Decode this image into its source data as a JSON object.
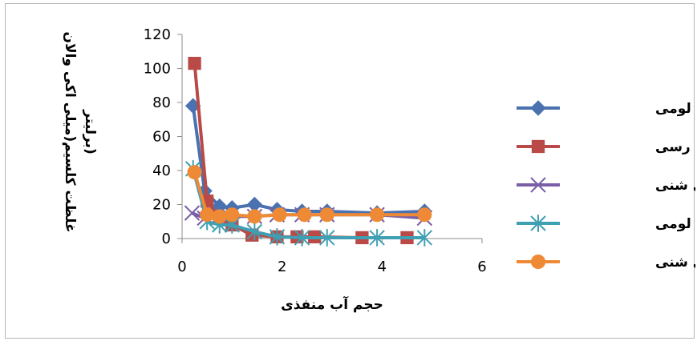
{
  "chart_data": {
    "type": "line",
    "title": "",
    "xlabel": "حجم آب منفذی",
    "ylabel_line1": "غلظت کلسیم(میلی اکی والان",
    "ylabel_line2": "برلیتر)",
    "xlim": [
      0,
      6
    ],
    "ylim": [
      0,
      120
    ],
    "xticks": [
      0,
      2,
      4,
      6
    ],
    "yticks": [
      0,
      20,
      40,
      60,
      80,
      100,
      120
    ],
    "grid": false,
    "legend_position": "right",
    "series": [
      {
        "name": "شنی لومی",
        "marker": "diamond",
        "color": "#4a72b0",
        "x": [
          0.22,
          0.45,
          0.75,
          1.0,
          1.45,
          1.9,
          2.4,
          2.9,
          3.9,
          4.85
        ],
        "y": [
          78,
          28,
          19,
          18,
          20,
          17,
          16,
          16,
          15,
          16
        ]
      },
      {
        "name": "لومی رسی",
        "marker": "square",
        "color": "#b94a48",
        "x": [
          0.25,
          0.5,
          0.75,
          1.0,
          1.4,
          1.9,
          2.3,
          2.65,
          3.6,
          4.5
        ],
        "y": [
          103,
          22,
          12,
          8,
          2,
          1,
          1,
          1,
          0.5,
          0.5
        ]
      },
      {
        "name": "لومی رسی شنی",
        "marker": "x",
        "color": "#7a5ea8",
        "x": [
          0.2,
          0.45,
          0.7,
          0.95,
          1.45,
          1.9,
          2.4,
          2.9,
          3.9,
          4.85
        ],
        "y": [
          15,
          12,
          12,
          13,
          13,
          14,
          14,
          14,
          14,
          12
        ]
      },
      {
        "name": "لومی",
        "marker": "asterisk",
        "color": "#3f9fb3",
        "x": [
          0.22,
          0.5,
          0.75,
          1.0,
          1.45,
          1.9,
          2.4,
          2.9,
          3.9,
          4.85
        ],
        "y": [
          41,
          10,
          8,
          8,
          4,
          1,
          0.5,
          0.5,
          0.5,
          0.5
        ]
      },
      {
        "name": "لومی شنی",
        "marker": "circle",
        "color": "#ee8a35",
        "x": [
          0.25,
          0.5,
          0.75,
          1.0,
          1.45,
          1.95,
          2.45,
          2.9,
          3.9,
          4.85
        ],
        "y": [
          39,
          14,
          13,
          14,
          13,
          14,
          14,
          14,
          14,
          14
        ]
      }
    ]
  }
}
